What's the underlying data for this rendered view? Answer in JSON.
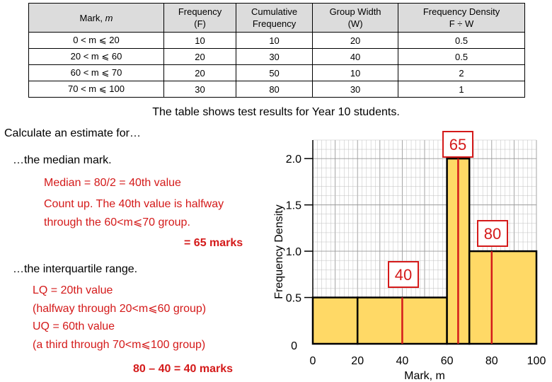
{
  "table": {
    "headers": [
      "Mark, m",
      "Frequency (F)",
      "Cumulative Frequency",
      "Group Width (W)",
      "Frequency Density F ÷ W"
    ],
    "rows": [
      [
        "0 < m ⩽ 20",
        "10",
        "10",
        "20",
        "0.5"
      ],
      [
        "20 < m ⩽ 60",
        "20",
        "30",
        "40",
        "0.5"
      ],
      [
        "60 < m ⩽ 70",
        "20",
        "50",
        "10",
        "2"
      ],
      [
        "70 < m ⩽ 100",
        "30",
        "80",
        "30",
        "1"
      ]
    ]
  },
  "caption": "The table shows test results for Year 10 students.",
  "question": {
    "intro": "Calculate an estimate for…",
    "median_prompt": "…the median mark.",
    "median_line1": "Median = 80/2 = 40th value",
    "median_line2": "Count up. The 40th value is halfway",
    "median_line3": "through the 60<m⩽70 group.",
    "median_answer": "= 65 marks",
    "iqr_prompt": "…the interquartile range.",
    "lq_line1": "LQ = 20th value",
    "lq_line2": "(halfway through 20<m⩽60 group)",
    "uq_line1": "UQ = 60th value",
    "uq_line2": "(a third through 70<m⩽100 group)",
    "iqr_answer": "80 – 40 = 40 marks"
  },
  "chart_data": {
    "type": "bar",
    "histogram": true,
    "xlabel": "Mark, m",
    "ylabel": "Frequency Density",
    "xlim": [
      0,
      100
    ],
    "ylim": [
      0,
      2.2
    ],
    "x_ticks": [
      "0",
      "20",
      "40",
      "60",
      "80",
      "100"
    ],
    "y_ticks": [
      "0",
      "0.5",
      "1.0",
      "1.5",
      "2.0"
    ],
    "grid": true,
    "bins": [
      {
        "from": 0,
        "to": 20,
        "density": 0.5
      },
      {
        "from": 20,
        "to": 60,
        "density": 0.5
      },
      {
        "from": 60,
        "to": 70,
        "density": 2.0
      },
      {
        "from": 70,
        "to": 100,
        "density": 1.0
      }
    ],
    "markers": [
      {
        "x": 40,
        "label": "40"
      },
      {
        "x": 65,
        "label": "65"
      },
      {
        "x": 80,
        "label": "80"
      }
    ]
  },
  "colors": {
    "bar_fill": "#ffd966",
    "marker": "#d41a1a",
    "grid": "#bfbfbf",
    "header_fill": "#dcdcdc"
  }
}
